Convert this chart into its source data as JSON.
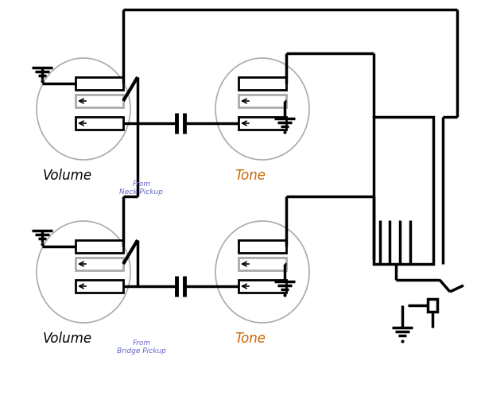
{
  "bg_color": "#ffffff",
  "lc": "#000000",
  "gc": "#aaaaaa",
  "vol_color": "#000000",
  "tone_color": "#cc6600",
  "from_color": "#6666cc",
  "volume_text": "Volume",
  "tone_text": "Tone",
  "from_neck": "From\nNeck Pickup",
  "from_bridge": "From\nBridge Pickup",
  "figw": 6.0,
  "figh": 5.27,
  "dpi": 100
}
